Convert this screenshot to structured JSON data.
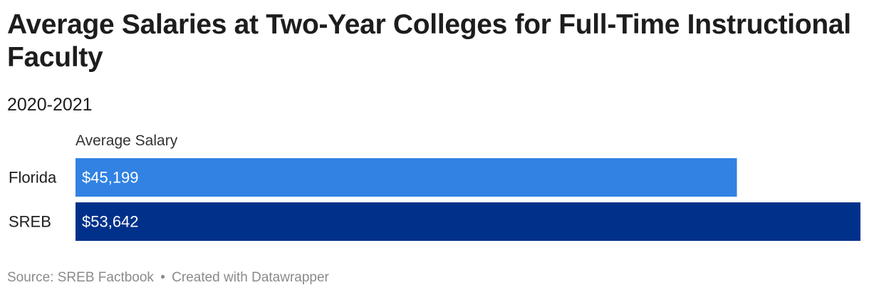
{
  "chart_data": {
    "type": "bar",
    "orientation": "horizontal",
    "title": "Average Salaries at Two-Year Colleges for Full-Time Instructional Faculty",
    "subtitle": "2020-2021",
    "value_column_label": "Average Salary",
    "categories": [
      "Florida",
      "SREB"
    ],
    "series": [
      {
        "values": [
          45199,
          53642
        ],
        "value_labels": [
          "$45,199",
          "$53,642"
        ],
        "colors": [
          "#3182e3",
          "#00318a"
        ]
      }
    ],
    "xlim": [
      0,
      53642
    ],
    "grid": false,
    "legend": "none"
  },
  "footer": {
    "source": "Source: SREB Factbook",
    "separator": "•",
    "credit": "Created with Datawrapper"
  }
}
